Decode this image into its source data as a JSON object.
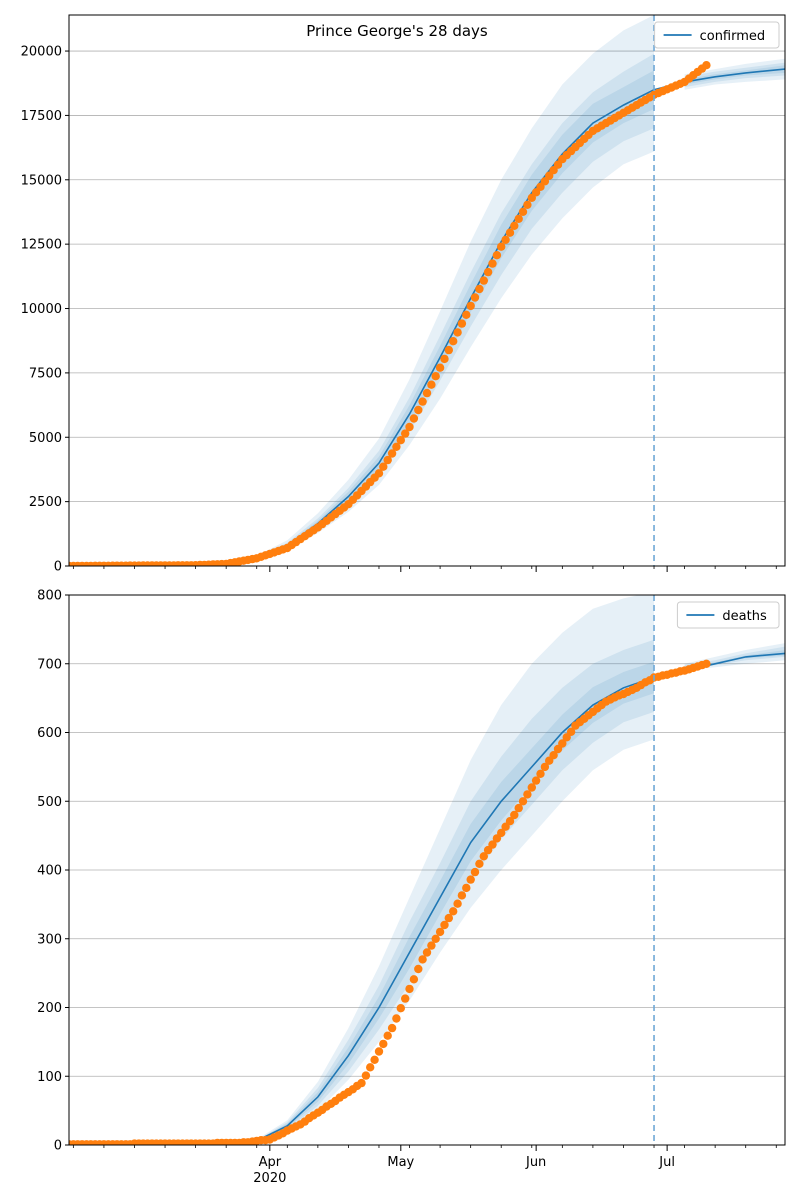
{
  "chart_data": [
    {
      "type": "line",
      "title": "Prince George's 28 days",
      "xlabel": "",
      "ylabel": "",
      "x_axis": {
        "type": "date",
        "range": [
          "2020-02-15",
          "2020-07-28"
        ],
        "major_ticks": [
          {
            "date": "2020-04-01",
            "label": "Apr"
          },
          {
            "date": "2020-05-01",
            "label": "May"
          },
          {
            "date": "2020-06-01",
            "label": "Jun"
          },
          {
            "date": "2020-07-01",
            "label": "Jul"
          }
        ],
        "year_label": "2020"
      },
      "ylim": [
        0,
        21400
      ],
      "yticks": [
        0,
        2500,
        5000,
        7500,
        10000,
        12500,
        15000,
        17500,
        20000
      ],
      "grid": "horizontal",
      "legend": {
        "position": "top-right",
        "entries": [
          "confirmed"
        ]
      },
      "forecast_start": "2020-06-28",
      "colors": {
        "model_line": "#1f77b4",
        "observed_points": "#ff7f0e",
        "band": "#1f77b4",
        "vline": "#6fa8d6"
      },
      "series": [
        {
          "name": "confirmed",
          "kind": "model",
          "x": [
            "2020-02-15",
            "2020-03-01",
            "2020-03-15",
            "2020-03-22",
            "2020-03-29",
            "2020-04-05",
            "2020-04-12",
            "2020-04-19",
            "2020-04-26",
            "2020-05-03",
            "2020-05-10",
            "2020-05-17",
            "2020-05-24",
            "2020-05-31",
            "2020-06-07",
            "2020-06-14",
            "2020-06-21",
            "2020-06-28",
            "2020-07-05",
            "2020-07-12",
            "2020-07-19",
            "2020-07-28"
          ],
          "values": [
            0,
            0,
            10,
            80,
            320,
            800,
            1650,
            2700,
            4000,
            5900,
            8100,
            10400,
            12600,
            14500,
            16000,
            17200,
            17900,
            18500,
            18800,
            19000,
            19150,
            19300
          ],
          "bands": [
            {
              "lower": [
                0,
                0,
                8,
                60,
                250,
                620,
                1280,
                2100,
                3150,
                4700,
                6500,
                8500,
                10400,
                12100,
                13500,
                14700,
                15600,
                16100,
                18500,
                18700,
                18800,
                18900
              ],
              "upper": [
                0,
                0,
                12,
                100,
                400,
                1000,
                2050,
                3350,
                4950,
                7250,
                9900,
                12600,
                15000,
                17000,
                18700,
                19900,
                20800,
                21400,
                19100,
                19300,
                19500,
                19700
              ]
            },
            {
              "lower": [
                0,
                0,
                9,
                68,
                280,
                690,
                1430,
                2350,
                3500,
                5200,
                7200,
                9300,
                11300,
                13100,
                14500,
                15700,
                16500,
                17000,
                18600,
                18800,
                18950,
                19050
              ],
              "upper": [
                0,
                0,
                11,
                90,
                360,
                900,
                1850,
                3030,
                4480,
                6550,
                8950,
                11400,
                13700,
                15600,
                17200,
                18400,
                19200,
                19900,
                19000,
                19200,
                19350,
                19550
              ]
            },
            {
              "lower": [
                0,
                0,
                9,
                74,
                300,
                745,
                1540,
                2520,
                3750,
                5550,
                7650,
                9850,
                11950,
                13800,
                15250,
                16450,
                17200,
                17750,
                18700,
                18900,
                19050,
                19150
              ],
              "upper": [
                0,
                0,
                11,
                86,
                340,
                855,
                1760,
                2880,
                4250,
                6250,
                8550,
                10950,
                13250,
                15200,
                16750,
                17950,
                18600,
                19250,
                18900,
                19100,
                19250,
                19450
              ]
            }
          ]
        },
        {
          "name": "observed",
          "kind": "points",
          "anchors": [
            [
              "2020-02-15",
              0
            ],
            [
              "2020-03-15",
              30
            ],
            [
              "2020-03-22",
              80
            ],
            [
              "2020-03-29",
              300
            ],
            [
              "2020-04-05",
              700
            ],
            [
              "2020-04-12",
              1500
            ],
            [
              "2020-04-19",
              2400
            ],
            [
              "2020-04-26",
              3600
            ],
            [
              "2020-05-03",
              5400
            ],
            [
              "2020-05-10",
              7700
            ],
            [
              "2020-05-17",
              10100
            ],
            [
              "2020-05-24",
              12400
            ],
            [
              "2020-05-31",
              14300
            ],
            [
              "2020-06-07",
              15800
            ],
            [
              "2020-06-14",
              16900
            ],
            [
              "2020-06-21",
              17600
            ],
            [
              "2020-06-28",
              18300
            ],
            [
              "2020-07-05",
              18800
            ],
            [
              "2020-07-10",
              19450
            ]
          ]
        }
      ]
    },
    {
      "type": "line",
      "title": "",
      "xlabel": "",
      "ylabel": "",
      "x_axis": {
        "type": "date",
        "range": [
          "2020-02-15",
          "2020-07-28"
        ],
        "major_ticks": [
          {
            "date": "2020-04-01",
            "label": "Apr"
          },
          {
            "date": "2020-05-01",
            "label": "May"
          },
          {
            "date": "2020-06-01",
            "label": "Jun"
          },
          {
            "date": "2020-07-01",
            "label": "Jul"
          }
        ],
        "year_label": "2020"
      },
      "ylim": [
        0,
        800
      ],
      "yticks": [
        0,
        100,
        200,
        300,
        400,
        500,
        600,
        700,
        800
      ],
      "grid": "horizontal",
      "legend": {
        "position": "top-right",
        "entries": [
          "deaths"
        ]
      },
      "forecast_start": "2020-06-28",
      "colors": {
        "model_line": "#1f77b4",
        "observed_points": "#ff7f0e",
        "band": "#1f77b4",
        "vline": "#6fa8d6"
      },
      "series": [
        {
          "name": "deaths",
          "kind": "model",
          "x": [
            "2020-02-15",
            "2020-03-15",
            "2020-03-22",
            "2020-03-29",
            "2020-04-05",
            "2020-04-12",
            "2020-04-19",
            "2020-04-26",
            "2020-05-03",
            "2020-05-10",
            "2020-05-17",
            "2020-05-24",
            "2020-05-31",
            "2020-06-07",
            "2020-06-14",
            "2020-06-21",
            "2020-06-28",
            "2020-07-05",
            "2020-07-12",
            "2020-07-19",
            "2020-07-28"
          ],
          "values": [
            0,
            0,
            2,
            6,
            28,
            70,
            130,
            200,
            280,
            360,
            440,
            500,
            550,
            600,
            640,
            665,
            680,
            690,
            700,
            710,
            715
          ],
          "bands": [
            {
              "lower": [
                0,
                0,
                1,
                4,
                20,
                50,
                95,
                150,
                210,
                280,
                345,
                400,
                450,
                500,
                545,
                575,
                590,
                690,
                695,
                700,
                705
              ],
              "upper": [
                0,
                0,
                3,
                8,
                36,
                92,
                170,
                260,
                360,
                460,
                560,
                640,
                700,
                745,
                780,
                795,
                805,
                700,
                710,
                720,
                730
              ]
            },
            {
              "lower": [
                0,
                0,
                1,
                5,
                23,
                57,
                107,
                168,
                235,
                312,
                385,
                445,
                495,
                545,
                585,
                615,
                630,
                692,
                698,
                705,
                710
              ],
              "upper": [
                0,
                0,
                3,
                7,
                33,
                83,
                153,
                232,
                325,
                410,
                500,
                565,
                620,
                665,
                700,
                720,
                735,
                698,
                705,
                715,
                725
              ]
            },
            {
              "lower": [
                0,
                0,
                1,
                5,
                25,
                63,
                118,
                184,
                257,
                336,
                413,
                472,
                523,
                574,
                614,
                642,
                657,
                695,
                700,
                708,
                712
              ],
              "upper": [
                0,
                0,
                3,
                7,
                31,
                77,
                142,
                216,
                303,
                384,
                467,
                528,
                577,
                626,
                666,
                688,
                703,
                695,
                702,
                712,
                720
              ]
            }
          ]
        },
        {
          "name": "observed",
          "kind": "points",
          "anchors": [
            [
              "2020-02-15",
              1
            ],
            [
              "2020-03-15",
              2
            ],
            [
              "2020-03-25",
              3
            ],
            [
              "2020-04-01",
              8
            ],
            [
              "2020-04-08",
              30
            ],
            [
              "2020-04-15",
              60
            ],
            [
              "2020-04-22",
              90
            ],
            [
              "2020-04-29",
              170
            ],
            [
              "2020-05-06",
              270
            ],
            [
              "2020-05-13",
              340
            ],
            [
              "2020-05-20",
              420
            ],
            [
              "2020-05-27",
              480
            ],
            [
              "2020-06-03",
              550
            ],
            [
              "2020-06-10",
              610
            ],
            [
              "2020-06-17",
              645
            ],
            [
              "2020-06-24",
              665
            ],
            [
              "2020-06-28",
              680
            ],
            [
              "2020-07-05",
              690
            ],
            [
              "2020-07-10",
              700
            ]
          ]
        }
      ]
    }
  ]
}
